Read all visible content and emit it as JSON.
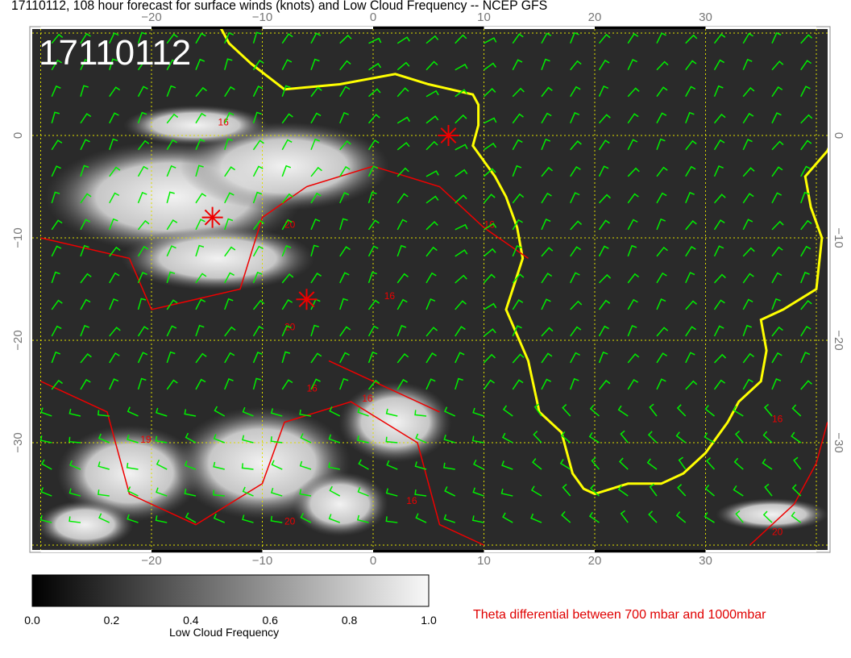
{
  "title": "17110112, 108 hour forecast for surface winds (knots) and Low Cloud Frequency -- NCEP GFS",
  "map": {
    "timestamp_label": "17110112",
    "lon_ticks": [
      "−20",
      "−10",
      "0",
      "10",
      "20",
      "30"
    ],
    "lon_values": [
      -20,
      -10,
      0,
      10,
      20,
      30
    ],
    "lat_ticks": [
      "0",
      "−10",
      "−20",
      "−30"
    ],
    "lat_values": [
      0,
      -10,
      -20,
      -30
    ],
    "contour_labels": [
      "16",
      "20",
      "16",
      "16",
      "20",
      "16",
      "19",
      "16",
      "16",
      "20",
      "16",
      "20"
    ],
    "colors": {
      "coastline": "#ffff00",
      "winds": "#00ee00",
      "contours": "#ee0000",
      "grid": "#dddd00"
    }
  },
  "colorbar": {
    "ticks": [
      "0.0",
      "0.2",
      "0.4",
      "0.6",
      "0.8",
      "1.0"
    ],
    "label": "Low Cloud Frequency"
  },
  "legend": {
    "theta_text": "Theta differential between 700 mbar and 1000mbar"
  }
}
